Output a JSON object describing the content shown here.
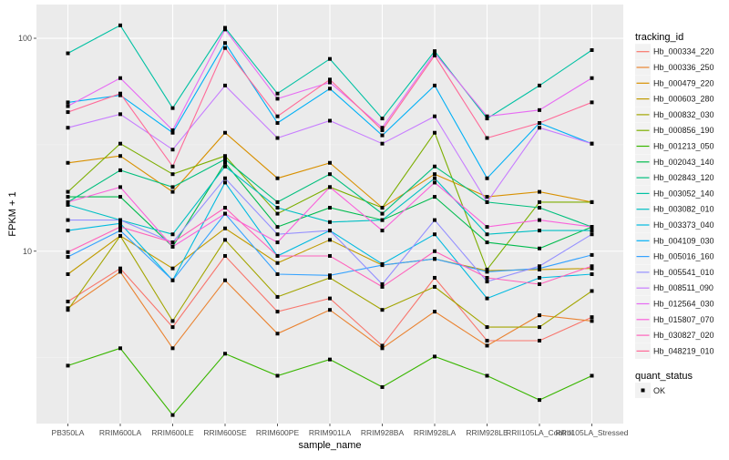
{
  "chart_data": {
    "type": "line",
    "xlabel": "sample_name",
    "ylabel": "FPKM + 1",
    "y_scale": "log10",
    "ylim": [
      1.55,
      144
    ],
    "y_ticks": [
      10,
      100
    ],
    "y_tick_labels": [
      "10",
      "100"
    ],
    "grid": true,
    "legend_position": "right",
    "legend_title": "tracking_id",
    "shape_legend_title": "quant_status",
    "shape_legend_entries": [
      "OK"
    ],
    "categories": [
      "PB350LA",
      "RRIM600LA",
      "RRIM600LE",
      "RRIM600SE",
      "RRIM600PE",
      "RRIM901LA",
      "RRIM928BA",
      "RRIM928LA",
      "RRIM928LE",
      "RRII105LA_Control",
      "RRII105LA_Stressed"
    ],
    "series": [
      {
        "name": "Hb_000334_220",
        "color": "#F8766D",
        "values": [
          5.8,
          8.3,
          4.4,
          9.5,
          5.2,
          6.0,
          3.6,
          7.5,
          3.8,
          3.8,
          4.9
        ]
      },
      {
        "name": "Hb_000336_250",
        "color": "#EA8331",
        "values": [
          5.4,
          8.0,
          3.5,
          7.3,
          4.1,
          5.3,
          3.5,
          5.2,
          3.6,
          5.0,
          4.7
        ]
      },
      {
        "name": "Hb_000479_220",
        "color": "#D89000",
        "values": [
          26,
          28,
          19,
          36,
          22,
          26,
          16,
          23,
          18,
          19,
          17
        ]
      },
      {
        "name": "Hb_000603_280",
        "color": "#C09B00",
        "values": [
          7.8,
          11.8,
          8.3,
          12.8,
          8.8,
          11.3,
          8.6,
          9.2,
          8.1,
          8.2,
          8.3
        ]
      },
      {
        "name": "Hb_000832_030",
        "color": "#A3A500",
        "values": [
          5.3,
          11.8,
          4.7,
          11.3,
          6.1,
          7.5,
          5.3,
          6.8,
          4.4,
          4.4,
          6.5
        ]
      },
      {
        "name": "Hb_000856_190",
        "color": "#7CAE00",
        "values": [
          19,
          32,
          23,
          28,
          15,
          20,
          16,
          36,
          8.2,
          17,
          17
        ]
      },
      {
        "name": "Hb_001213_050",
        "color": "#39B600",
        "values": [
          2.9,
          3.5,
          1.7,
          3.3,
          2.6,
          3.1,
          2.3,
          3.2,
          2.6,
          2.0,
          2.6
        ]
      },
      {
        "name": "Hb_002043_140",
        "color": "#00BB4E",
        "values": [
          18,
          18,
          10.5,
          26,
          13,
          16,
          14,
          18,
          11,
          10.3,
          13
        ]
      },
      {
        "name": "Hb_002843_120",
        "color": "#00BF7D",
        "values": [
          17,
          24,
          20,
          27,
          17,
          23,
          15,
          25,
          17,
          16,
          13
        ]
      },
      {
        "name": "Hb_003052_140",
        "color": "#00C1A3",
        "values": [
          85,
          115,
          47,
          112,
          55,
          80,
          42,
          87,
          42,
          60,
          88
        ]
      },
      {
        "name": "Hb_003082_010",
        "color": "#00BFC4",
        "values": [
          16.5,
          14,
          12,
          25,
          16,
          13.7,
          14,
          22,
          12,
          12.5,
          12.5
        ]
      },
      {
        "name": "Hb_003373_040",
        "color": "#00BAE0",
        "values": [
          12.5,
          13.5,
          7.3,
          21,
          9.5,
          12.5,
          8.7,
          12,
          6.0,
          7.5,
          7.8
        ]
      },
      {
        "name": "Hb_004109_030",
        "color": "#00B0F6",
        "values": [
          50,
          54,
          36,
          95,
          40,
          58,
          35,
          60,
          22,
          40,
          32
        ]
      },
      {
        "name": "Hb_005016_160",
        "color": "#35A2FF",
        "values": [
          9.4,
          12.5,
          7.3,
          15,
          7.8,
          7.7,
          8.6,
          9.2,
          8.0,
          8.3,
          9.6
        ]
      },
      {
        "name": "Hb_005541_010",
        "color": "#9590FF",
        "values": [
          14,
          14,
          11,
          22,
          12,
          12.5,
          7.0,
          14,
          7.2,
          8.5,
          12
        ]
      },
      {
        "name": "Hb_008511_090",
        "color": "#C77CFF",
        "values": [
          38,
          44,
          30,
          60,
          34,
          41,
          32,
          43,
          17,
          38,
          32
        ]
      },
      {
        "name": "Hb_012564_030",
        "color": "#E76BF3",
        "values": [
          48,
          65,
          37,
          110,
          52,
          62,
          38,
          85,
          43,
          46,
          65
        ]
      },
      {
        "name": "Hb_015807_070",
        "color": "#FA62DB",
        "values": [
          17,
          20,
          10.5,
          15,
          11,
          20,
          12.5,
          21,
          13,
          14,
          13
        ]
      },
      {
        "name": "Hb_030827_020",
        "color": "#FF62BC",
        "values": [
          9.9,
          13,
          11,
          16,
          9.5,
          9.5,
          6.8,
          10,
          7.5,
          7.0,
          8.5
        ]
      },
      {
        "name": "Hb_048219_010",
        "color": "#FF6A98",
        "values": [
          45,
          55,
          25,
          90,
          43,
          64,
          37,
          83,
          34,
          40,
          50
        ]
      }
    ]
  }
}
